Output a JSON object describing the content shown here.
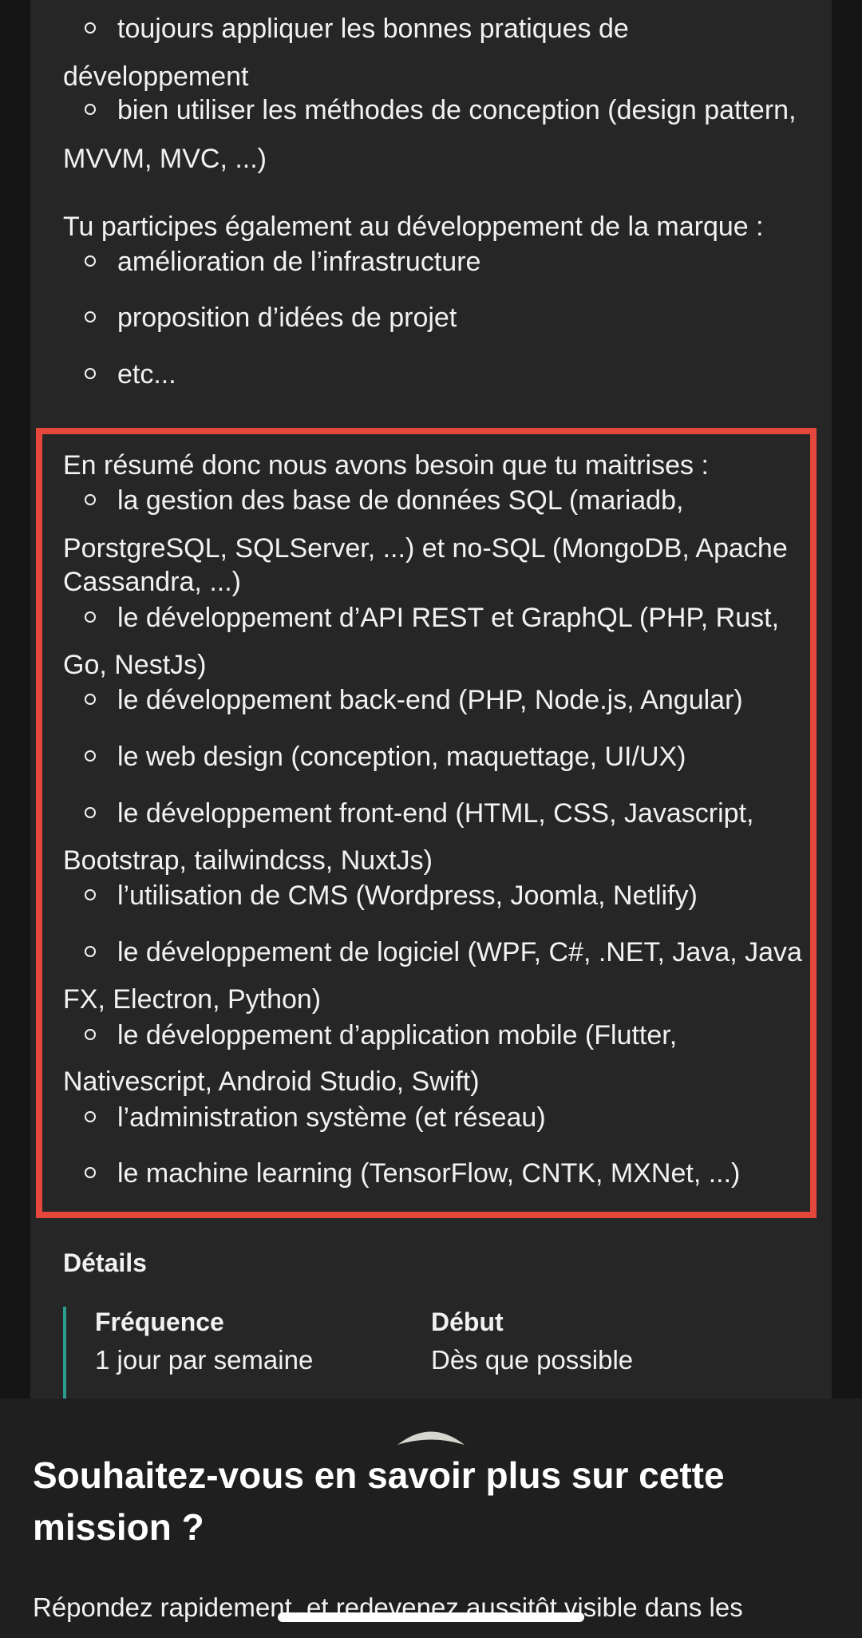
{
  "pre_lines": [
    "toujours appliquer les bonnes pratiques de",
    "développement",
    "bien utiliser les méthodes de conception (design pattern,",
    "MVVM, MVC, ...)"
  ],
  "brand_intro": "Tu participes également au développement de la marque :",
  "brand_items": [
    "amélioration de l’infrastructure",
    "proposition d’idées de projet",
    "etc..."
  ],
  "summary": {
    "intro": "En résumé donc nous avons besoin que tu maitrises :",
    "lines": [
      "la gestion des base de données SQL (mariadb,",
      "PorstgreSQL, SQLServer, ...) et no-SQL (MongoDB, Apache",
      "Cassandra, ...)",
      "le développement d’API REST et GraphQL (PHP, Rust,",
      "Go, NestJs)",
      "le développement back-end (PHP, Node.js, Angular)",
      "le web design (conception, maquettage, UI/UX)",
      "le développement front-end (HTML, CSS, Javascript,",
      "Bootstrap, tailwindcss, NuxtJs)",
      "l’utilisation de CMS (Wordpress, Joomla, Netlify)",
      "le développement de logiciel (WPF, C#, .NET, Java, Java",
      "FX, Electron, Python)",
      "le développement d’application mobile (Flutter,",
      "Nativescript, Android Studio, Swift)",
      "l’administration système (et réseau)",
      "le machine learning (TensorFlow, CNTK, MXNet, ...)"
    ]
  },
  "details": {
    "title": "Détails",
    "frequency_label": "Fréquence",
    "frequency_value": "1 jour par semaine",
    "start_label": "Début",
    "start_value": "Dès que possible"
  },
  "sheet": {
    "title": "Souhaitez-vous en savoir plus sur cette mission ?",
    "text": "Répondez rapidement, et redevenez aussitôt visible dans les"
  },
  "colors": {
    "highlight_border": "#e4473b",
    "details_accent": "#2a9d8f",
    "card_background": "#262626",
    "page_background": "#141414"
  },
  "icons": [
    "chevron-up-icon"
  ]
}
